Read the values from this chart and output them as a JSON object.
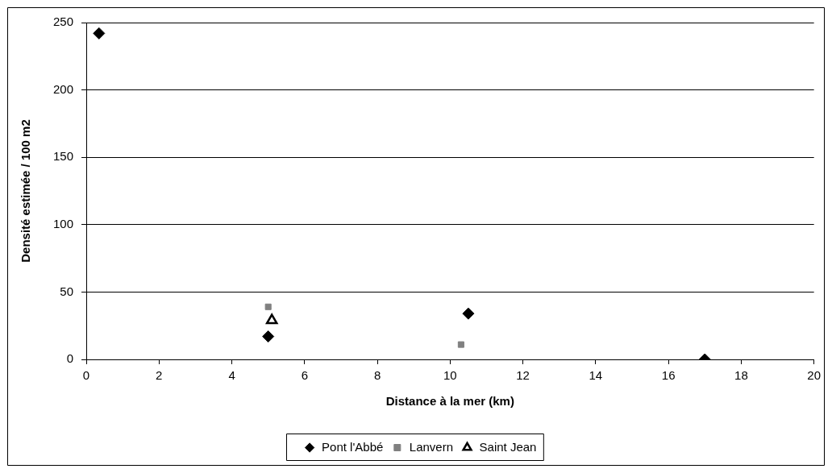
{
  "chart_data": {
    "type": "scatter",
    "xlabel": "Distance à la mer (km)",
    "ylabel": "Densité estimée / 100 m2",
    "xlim": [
      0,
      20
    ],
    "xticks": [
      0,
      2,
      4,
      6,
      8,
      10,
      12,
      14,
      16,
      18,
      20
    ],
    "ylim": [
      0,
      250
    ],
    "yticks": [
      0,
      50,
      100,
      150,
      200,
      250
    ],
    "grid": "y",
    "legend": "bottom",
    "series": [
      {
        "name": "Pont l'Abbé",
        "color": "#000000",
        "marker": "diamond",
        "x": [
          0.35,
          5,
          10.5,
          17
        ],
        "values": [
          242,
          17,
          34,
          0
        ]
      },
      {
        "name": "Lanvern",
        "color": "#808080",
        "marker": "square",
        "x": [
          5,
          10.3
        ],
        "values": [
          39,
          11
        ]
      },
      {
        "name": "Saint Jean",
        "color": "#000000",
        "marker": "triangle",
        "x": [
          5.1
        ],
        "values": [
          29
        ]
      }
    ]
  }
}
